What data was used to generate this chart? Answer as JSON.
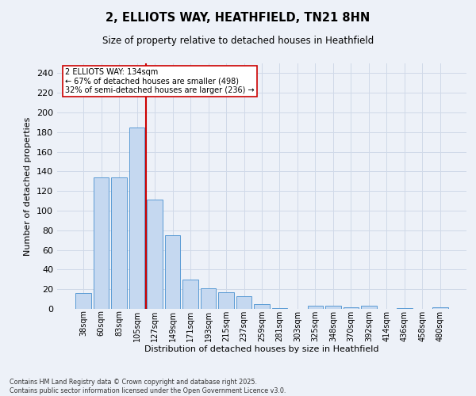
{
  "title": "2, ELLIOTS WAY, HEATHFIELD, TN21 8HN",
  "subtitle": "Size of property relative to detached houses in Heathfield",
  "xlabel": "Distribution of detached houses by size in Heathfield",
  "ylabel": "Number of detached properties",
  "categories": [
    "38sqm",
    "60sqm",
    "83sqm",
    "105sqm",
    "127sqm",
    "149sqm",
    "171sqm",
    "193sqm",
    "215sqm",
    "237sqm",
    "259sqm",
    "281sqm",
    "303sqm",
    "325sqm",
    "348sqm",
    "370sqm",
    "392sqm",
    "414sqm",
    "436sqm",
    "458sqm",
    "480sqm"
  ],
  "values": [
    16,
    134,
    134,
    185,
    111,
    75,
    30,
    21,
    17,
    13,
    5,
    1,
    0,
    3,
    3,
    2,
    3,
    0,
    1,
    0,
    2
  ],
  "bar_color": "#c5d8f0",
  "bar_edge_color": "#5b9bd5",
  "grid_color": "#d0d9e8",
  "background_color": "#edf1f8",
  "vline_index": 4,
  "vline_color": "#cc0000",
  "annotation_text": "2 ELLIOTS WAY: 134sqm\n← 67% of detached houses are smaller (498)\n32% of semi-detached houses are larger (236) →",
  "annotation_box_color": "#ffffff",
  "annotation_box_edge": "#cc0000",
  "footer_text": "Contains HM Land Registry data © Crown copyright and database right 2025.\nContains public sector information licensed under the Open Government Licence v3.0.",
  "ylim_max": 250,
  "yticks": [
    0,
    20,
    40,
    60,
    80,
    100,
    120,
    140,
    160,
    180,
    200,
    220,
    240
  ]
}
